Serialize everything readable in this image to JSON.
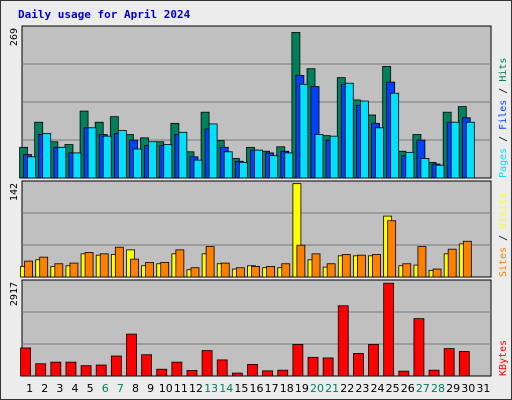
{
  "title": "Daily usage for April 2024",
  "colors": {
    "background": "#ececec",
    "plot_bg": "#c0c0c0",
    "hits": "#00805c",
    "files": "#0040ff",
    "pages": "#00e0ff",
    "visits": "#ffff00",
    "sites": "#ff8000",
    "kbytes": "#ff0000",
    "weekday_label": "#000000",
    "weekend_label": "#00805c"
  },
  "chart_data": [
    {
      "type": "bar",
      "panel": "hits-files-pages",
      "ymax_label": "269",
      "ylim": [
        0,
        269
      ],
      "legend": [
        "Pages",
        "Files",
        "Hits"
      ],
      "categories": [
        "1",
        "2",
        "3",
        "4",
        "5",
        "6",
        "7",
        "8",
        "9",
        "10",
        "11",
        "12",
        "13",
        "14",
        "15",
        "16",
        "17",
        "18",
        "19",
        "20",
        "21",
        "22",
        "23",
        "24",
        "25",
        "26",
        "27",
        "28",
        "29",
        "30",
        "31"
      ],
      "weekend_days": [
        "6",
        "7",
        "13",
        "14",
        "20",
        "21",
        "27",
        "28"
      ],
      "series": [
        {
          "name": "Hits",
          "values": [
            55,
            100,
            65,
            60,
            120,
            100,
            110,
            78,
            72,
            65,
            98,
            47,
            118,
            67,
            35,
            55,
            48,
            56,
            261,
            196,
            76,
            180,
            140,
            113,
            200,
            48,
            78,
            28,
            118,
            128,
            0
          ]
        },
        {
          "name": "Files",
          "values": [
            42,
            78,
            55,
            45,
            90,
            78,
            80,
            68,
            58,
            58,
            78,
            38,
            88,
            55,
            30,
            50,
            45,
            48,
            184,
            164,
            68,
            168,
            130,
            98,
            172,
            40,
            68,
            25,
            100,
            108,
            0
          ]
        },
        {
          "name": "Pages",
          "values": [
            38,
            80,
            55,
            45,
            90,
            75,
            85,
            52,
            65,
            60,
            82,
            32,
            97,
            47,
            28,
            50,
            40,
            45,
            168,
            78,
            75,
            170,
            138,
            90,
            152,
            46,
            35,
            23,
            100,
            100,
            0
          ]
        }
      ]
    },
    {
      "type": "bar",
      "panel": "visits-sites",
      "ymax_label": "142",
      "ylim": [
        0,
        142
      ],
      "legend": [
        "Sites",
        "Visits"
      ],
      "categories": [
        "1",
        "2",
        "3",
        "4",
        "5",
        "6",
        "7",
        "8",
        "9",
        "10",
        "11",
        "12",
        "13",
        "14",
        "15",
        "16",
        "17",
        "18",
        "19",
        "20",
        "21",
        "22",
        "23",
        "24",
        "25",
        "26",
        "27",
        "28",
        "29",
        "30",
        "31"
      ],
      "series": [
        {
          "name": "Visits",
          "values": [
            16,
            26,
            16,
            17,
            35,
            33,
            34,
            41,
            17,
            20,
            35,
            11,
            35,
            20,
            12,
            17,
            14,
            14,
            141,
            26,
            15,
            32,
            32,
            32,
            92,
            17,
            18,
            10,
            35,
            50,
            0
          ]
        },
        {
          "name": "Sites",
          "values": [
            24,
            30,
            20,
            21,
            37,
            35,
            45,
            27,
            22,
            22,
            41,
            14,
            46,
            21,
            14,
            16,
            16,
            20,
            48,
            35,
            20,
            34,
            33,
            34,
            85,
            20,
            46,
            12,
            42,
            54,
            0
          ]
        }
      ]
    },
    {
      "type": "bar",
      "panel": "kbytes",
      "ymax_label": "2917",
      "ylim": [
        0,
        2917
      ],
      "legend": [
        "KBytes"
      ],
      "categories": [
        "1",
        "2",
        "3",
        "4",
        "5",
        "6",
        "7",
        "8",
        "9",
        "10",
        "11",
        "12",
        "13",
        "14",
        "15",
        "16",
        "17",
        "18",
        "19",
        "20",
        "21",
        "22",
        "23",
        "24",
        "25",
        "26",
        "27",
        "28",
        "29",
        "30",
        "31"
      ],
      "series": [
        {
          "name": "KBytes",
          "values": [
            870,
            380,
            430,
            430,
            320,
            340,
            620,
            1300,
            660,
            210,
            430,
            170,
            790,
            500,
            90,
            360,
            160,
            180,
            980,
            580,
            560,
            2180,
            700,
            980,
            2880,
            150,
            1780,
            180,
            850,
            760,
            0
          ]
        }
      ]
    }
  ]
}
